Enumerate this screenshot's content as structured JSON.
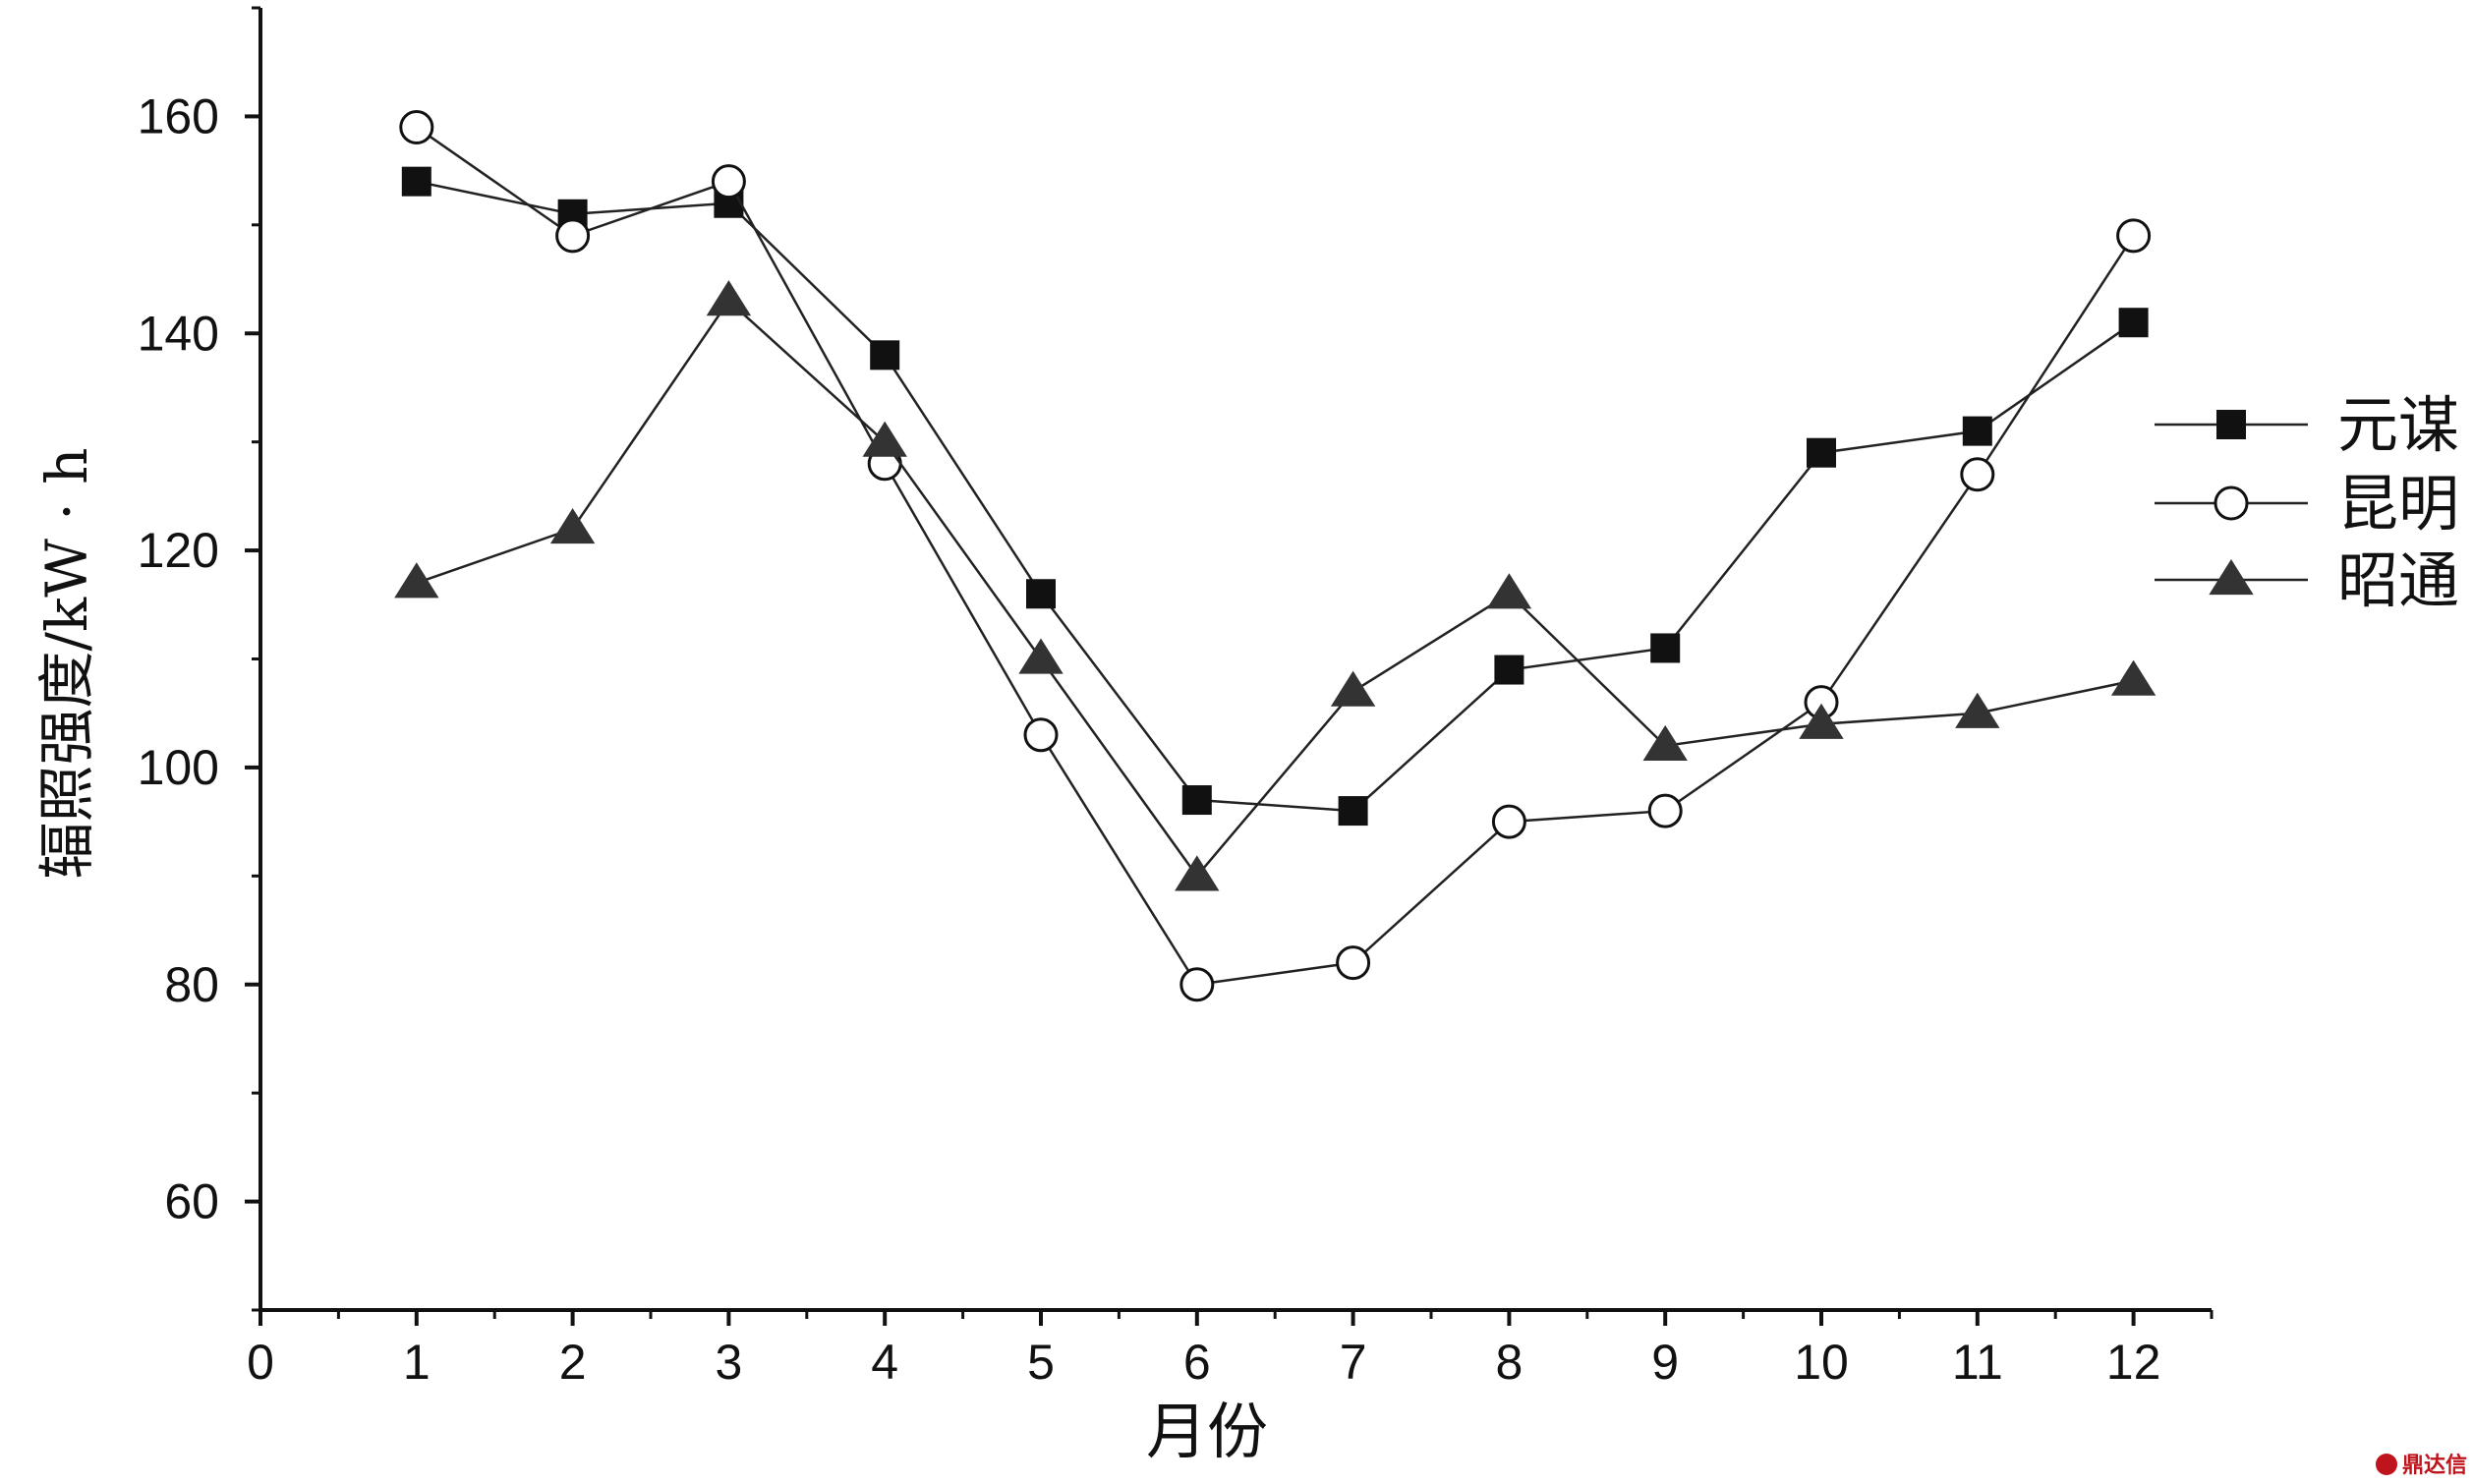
{
  "chart_data": {
    "type": "line",
    "title": "",
    "xlabel": "月份",
    "ylabel": "辐照强度/kW · h",
    "xlim": [
      0,
      12.5
    ],
    "ylim": [
      50,
      170
    ],
    "xticks": [
      0,
      1,
      2,
      3,
      4,
      5,
      6,
      7,
      8,
      9,
      10,
      11,
      12
    ],
    "yticks": [
      60,
      80,
      100,
      120,
      140,
      160
    ],
    "grid": false,
    "legend_position": "right",
    "x": [
      1,
      2,
      3,
      4,
      5,
      6,
      7,
      8,
      9,
      10,
      11,
      12
    ],
    "series": [
      {
        "name": "元谋",
        "marker": "filled-square",
        "values": [
          154,
          151,
          152,
          138,
          116,
          97,
          96,
          109,
          111,
          129,
          131,
          141
        ]
      },
      {
        "name": "昆明",
        "marker": "open-circle",
        "values": [
          159,
          149,
          154,
          128,
          103,
          80,
          82,
          95,
          96,
          106,
          127,
          149
        ]
      },
      {
        "name": "昭通",
        "marker": "filled-triangle",
        "values": [
          117,
          122,
          143,
          130,
          110,
          90,
          107,
          116,
          102,
          104,
          105,
          108
        ]
      }
    ]
  },
  "watermark": {
    "text": "鼎达信",
    "color": "#c0141c"
  }
}
